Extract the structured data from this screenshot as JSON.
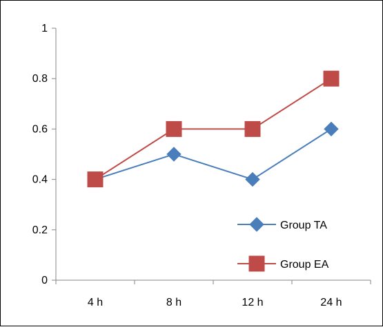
{
  "chart_data": {
    "type": "line",
    "categories": [
      "4 h",
      "8 h",
      "12 h",
      "24 h"
    ],
    "ylim": [
      0,
      1
    ],
    "yticks": [
      0,
      0.2,
      0.4,
      0.6,
      0.8,
      1
    ],
    "ytick_labels": [
      "0",
      "0.2",
      "0.4",
      "0.6",
      "0.8",
      "1"
    ],
    "grid": false,
    "legend_position": "bottom-right",
    "series": [
      {
        "name": "Group TA",
        "values": [
          0.4,
          0.5,
          0.4,
          0.6
        ],
        "color": "#4a7ebb",
        "marker": "diamond"
      },
      {
        "name": "Group EA",
        "values": [
          0.4,
          0.6,
          0.6,
          0.8
        ],
        "color": "#be4b48",
        "marker": "square"
      }
    ]
  }
}
